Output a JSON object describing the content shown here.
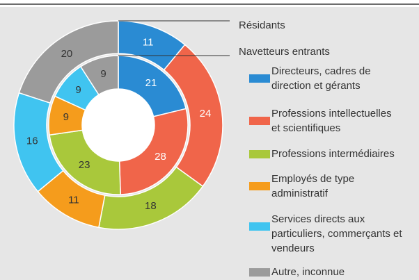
{
  "chart_data": {
    "type": "nested-donut",
    "categories": [
      [
        "Directeurs, cadres de",
        "direction et gérants"
      ],
      [
        "Professions intellectuelles",
        "et scientifiques"
      ],
      [
        "Professions intermédiaires"
      ],
      [
        "Employés de type",
        "administratif"
      ],
      [
        "Services directs aux",
        "particuliers, commerçants et",
        "vendeurs"
      ],
      [
        "Autre, inconnue"
      ]
    ],
    "colors": [
      "#2a8bd3",
      "#f0654a",
      "#a9c83b",
      "#f59c1c",
      "#40c4f0",
      "#9b9b9b"
    ],
    "series": [
      {
        "name": "Résidants",
        "ring": "outer",
        "values": [
          11,
          24,
          18,
          11,
          16,
          20
        ]
      },
      {
        "name": "Navetteurs entrants",
        "ring": "inner",
        "values": [
          21,
          28,
          23,
          9,
          9,
          9
        ]
      }
    ]
  }
}
